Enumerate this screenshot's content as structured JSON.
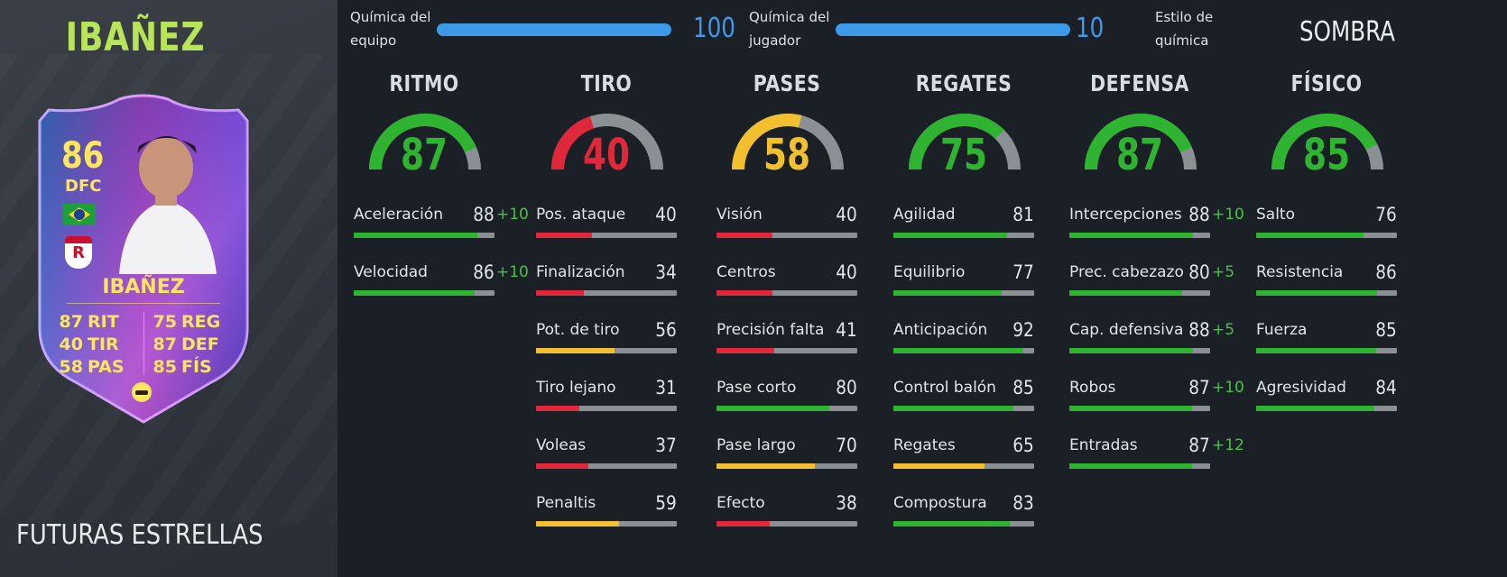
{
  "player": {
    "name": "IBAÑEZ",
    "promo": "FUTURAS ESTRELLAS"
  },
  "card": {
    "rating": "86",
    "position": "DFC",
    "name": "IBAÑEZ",
    "club_letter": "R",
    "stats": [
      {
        "value": "87",
        "label": "RIT"
      },
      {
        "value": "40",
        "label": "TIR"
      },
      {
        "value": "58",
        "label": "PAS"
      },
      {
        "value": "75",
        "label": "REG"
      },
      {
        "value": "87",
        "label": "DEF"
      },
      {
        "value": "85",
        "label": "FÍS"
      }
    ]
  },
  "chemistry": {
    "team_label": "Química del equipo",
    "team_value": "100",
    "team_fill": 1.0,
    "player_label": "Química del jugador",
    "player_value": "10",
    "player_fill": 1.0,
    "style_label": "Estilo de química",
    "style_value": "SOMBRA"
  },
  "colors": {
    "green": "#2fb432",
    "red": "#e0283a",
    "yellow": "#f2bf2f",
    "gray": "#8b9095",
    "accent_blue": "#3d9ae8",
    "bonus": "#46c43f"
  },
  "categories": [
    {
      "title": "RITMO",
      "value": "87",
      "color": "green",
      "attributes": [
        {
          "name": "Aceleración",
          "value": "88",
          "bonus": "+10",
          "color": "green"
        },
        {
          "name": "Velocidad",
          "value": "86",
          "bonus": "+10",
          "color": "green"
        }
      ]
    },
    {
      "title": "TIRO",
      "value": "40",
      "color": "red",
      "attributes": [
        {
          "name": "Pos. ataque",
          "value": "40",
          "bonus": "",
          "color": "red"
        },
        {
          "name": "Finalización",
          "value": "34",
          "bonus": "",
          "color": "red"
        },
        {
          "name": "Pot. de tiro",
          "value": "56",
          "bonus": "",
          "color": "yellow"
        },
        {
          "name": "Tiro lejano",
          "value": "31",
          "bonus": "",
          "color": "red"
        },
        {
          "name": "Voleas",
          "value": "37",
          "bonus": "",
          "color": "red"
        },
        {
          "name": "Penaltis",
          "value": "59",
          "bonus": "",
          "color": "yellow"
        }
      ]
    },
    {
      "title": "PASES",
      "value": "58",
      "color": "yellow",
      "attributes": [
        {
          "name": "Visión",
          "value": "40",
          "bonus": "",
          "color": "red"
        },
        {
          "name": "Centros",
          "value": "40",
          "bonus": "",
          "color": "red"
        },
        {
          "name": "Precisión falta",
          "value": "41",
          "bonus": "",
          "color": "red"
        },
        {
          "name": "Pase corto",
          "value": "80",
          "bonus": "",
          "color": "green"
        },
        {
          "name": "Pase largo",
          "value": "70",
          "bonus": "",
          "color": "yellow"
        },
        {
          "name": "Efecto",
          "value": "38",
          "bonus": "",
          "color": "red"
        }
      ]
    },
    {
      "title": "REGATES",
      "value": "75",
      "color": "green",
      "attributes": [
        {
          "name": "Agilidad",
          "value": "81",
          "bonus": "",
          "color": "green"
        },
        {
          "name": "Equilibrio",
          "value": "77",
          "bonus": "",
          "color": "green"
        },
        {
          "name": "Anticipación",
          "value": "92",
          "bonus": "",
          "color": "green"
        },
        {
          "name": "Control balón",
          "value": "85",
          "bonus": "",
          "color": "green"
        },
        {
          "name": "Regates",
          "value": "65",
          "bonus": "",
          "color": "yellow"
        },
        {
          "name": "Compostura",
          "value": "83",
          "bonus": "",
          "color": "green"
        }
      ]
    },
    {
      "title": "DEFENSA",
      "value": "87",
      "color": "green",
      "attributes": [
        {
          "name": "Intercepciones",
          "value": "88",
          "bonus": "+10",
          "color": "green"
        },
        {
          "name": "Prec. cabezazo",
          "value": "80",
          "bonus": "+5",
          "color": "green"
        },
        {
          "name": "Cap. defensiva",
          "value": "88",
          "bonus": "+5",
          "color": "green"
        },
        {
          "name": "Robos",
          "value": "87",
          "bonus": "+10",
          "color": "green"
        },
        {
          "name": "Entradas",
          "value": "87",
          "bonus": "+12",
          "color": "green"
        }
      ]
    },
    {
      "title": "FÍSICO",
      "value": "85",
      "color": "green",
      "attributes": [
        {
          "name": "Salto",
          "value": "76",
          "bonus": "",
          "color": "green"
        },
        {
          "name": "Resistencia",
          "value": "86",
          "bonus": "",
          "color": "green"
        },
        {
          "name": "Fuerza",
          "value": "85",
          "bonus": "",
          "color": "green"
        },
        {
          "name": "Agresividad",
          "value": "84",
          "bonus": "",
          "color": "green"
        }
      ]
    }
  ]
}
